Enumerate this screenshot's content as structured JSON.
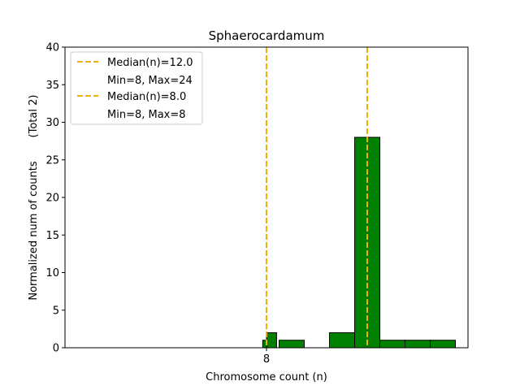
{
  "chart_data": {
    "type": "bar",
    "title": "Sphaerocardamum",
    "xlabel": "Chromosome count (n)",
    "ylabel": "Normalized num of counts",
    "ylabel_suffix": "(Total 2)",
    "xlim": [
      0.0,
      16.0
    ],
    "ylim": [
      0,
      40
    ],
    "x_ticks": [
      {
        "value": 8.0,
        "label": "8"
      }
    ],
    "y_ticks": [
      0,
      5,
      10,
      15,
      20,
      25,
      30,
      35,
      40
    ],
    "grid": false,
    "legend_placement": "top-left",
    "bar_color": "#008000",
    "bar_edge_color": "#000000",
    "bars": [
      {
        "x0": 7.85,
        "x1": 8.0,
        "value": 1
      },
      {
        "x0": 8.0,
        "x1": 8.4,
        "value": 2
      },
      {
        "x0": 8.5,
        "x1": 9.5,
        "value": 1
      },
      {
        "x0": 10.5,
        "x1": 11.5,
        "value": 2
      },
      {
        "x0": 11.5,
        "x1": 12.5,
        "value": 28
      },
      {
        "x0": 12.5,
        "x1": 13.5,
        "value": 1
      },
      {
        "x0": 13.5,
        "x1": 14.5,
        "value": 1
      },
      {
        "x0": 14.5,
        "x1": 15.5,
        "value": 1
      }
    ],
    "median_lines": [
      {
        "x": 12.0,
        "label": "Median(n)=12.0",
        "range_label": "Min=8, Max=24",
        "color": "#f0b000"
      },
      {
        "x": 8.0,
        "label": "Median(n)=8.0",
        "range_label": "Min=8, Max=8",
        "color": "#f0b000"
      }
    ]
  }
}
